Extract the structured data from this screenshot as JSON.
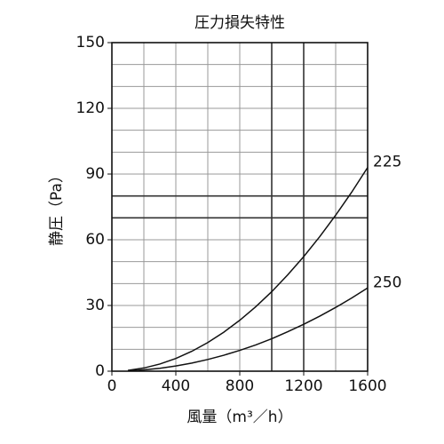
{
  "chart_data": {
    "type": "line",
    "title": "圧力損失特性",
    "x_label": "風量（m³／h）",
    "y_label": "静圧（Pa）",
    "x": [
      100,
      200,
      300,
      400,
      500,
      600,
      700,
      800,
      900,
      1000,
      1100,
      1200,
      1300,
      1400,
      1500,
      1600
    ],
    "series": [
      {
        "name": "225",
        "color": "#111111",
        "values": [
          0.36,
          1.45,
          3.27,
          5.81,
          9.08,
          13.08,
          17.8,
          23.25,
          29.4,
          36.3,
          44.0,
          52.3,
          61.4,
          71.2,
          81.7,
          93
        ]
      },
      {
        "name": "250",
        "color": "#111111",
        "values": [
          0.15,
          0.59,
          1.34,
          2.38,
          3.71,
          5.34,
          7.27,
          9.5,
          12.0,
          14.8,
          18.0,
          21.4,
          25.1,
          29.1,
          33.4,
          38
        ]
      }
    ],
    "xlim": [
      0,
      1600
    ],
    "ylim": [
      0,
      150
    ],
    "xticks": [
      0,
      400,
      800,
      1200,
      1600
    ],
    "yticks": [
      0,
      30,
      60,
      90,
      120,
      150
    ],
    "xgrid": [
      200,
      400,
      600,
      800,
      1000,
      1200,
      1400
    ],
    "ygrid": [
      10,
      20,
      30,
      40,
      50,
      60,
      70,
      80,
      90,
      100,
      110,
      120,
      130,
      140
    ],
    "xgrid_bold": [
      1000,
      1200
    ],
    "ygrid_bold": [
      70,
      80
    ],
    "grid": true
  }
}
